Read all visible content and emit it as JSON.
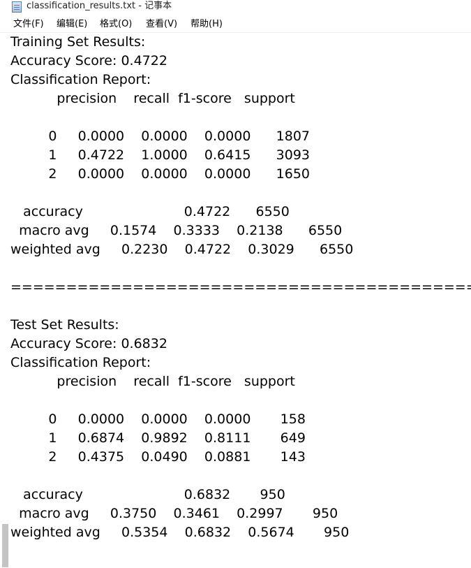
{
  "window": {
    "title": "classification_results.txt - 记事本"
  },
  "icons": {
    "app": "notepad-icon"
  },
  "menu": [
    {
      "label": "文件(F)"
    },
    {
      "label": "编辑(E)"
    },
    {
      "label": "格式(O)"
    },
    {
      "label": "查看(V)"
    },
    {
      "label": "帮助(H)"
    }
  ],
  "document": {
    "lines": [
      "Training Set Results:",
      "Accuracy Score: 0.4722",
      "Classification Report:",
      "           precision    recall  f1-score   support",
      "",
      "         0     0.0000    0.0000    0.0000      1807",
      "         1     0.4722    1.0000    0.6415      3093",
      "         2     0.0000    0.0000    0.0000      1650",
      "",
      "   accuracy                        0.4722      6550",
      "  macro avg     0.1574    0.3333    0.2138      6550",
      "weighted avg     0.2230    0.4722    0.3029      6550",
      "",
      "==================================================",
      "",
      "Test Set Results:",
      "Accuracy Score: 0.6832",
      "Classification Report:",
      "           precision    recall  f1-score   support",
      "",
      "         0     0.0000    0.0000    0.0000       158",
      "         1     0.6874    0.9892    0.8111       649",
      "         2     0.4375    0.0490    0.0881       143",
      "",
      "   accuracy                        0.6832       950",
      "  macro avg     0.3750    0.3461    0.2997       950",
      "weighted avg     0.5354    0.6832    0.5674       950"
    ]
  }
}
